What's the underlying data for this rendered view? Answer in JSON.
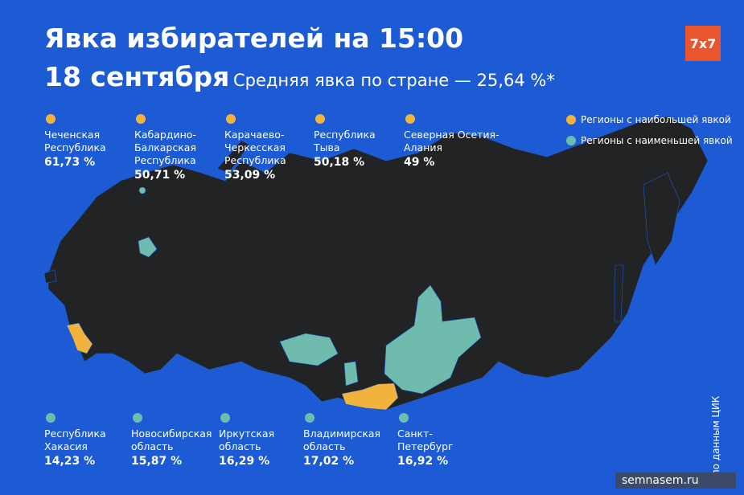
{
  "header": {
    "title": "Явка избирателей на 15:00",
    "date": "18 сентября",
    "subtitle": "Средняя явка по стране — 25,64 %*"
  },
  "logo": "7x7",
  "legend": [
    {
      "label": "Регионы с наибольшей явкой",
      "color": "#f2b33d"
    },
    {
      "label": "Регионы с наименьшей явкой",
      "color": "#6fbcaf"
    }
  ],
  "top_regions": [
    {
      "name": "Чеченская\nРеспублика",
      "turnout": "61,73 %"
    },
    {
      "name": "Кабардино-\nБалкарская\nРеспублика",
      "turnout": "50,71 %"
    },
    {
      "name": "Карачаево-\nЧеркесская\nРеспублика",
      "turnout": "53,09 %"
    },
    {
      "name": "Республика\nТыва",
      "turnout": "50,18 %"
    },
    {
      "name": "Северная Осетия-\nАлания",
      "turnout": "49 %"
    }
  ],
  "bottom_regions": [
    {
      "name": "Республика\nХакасия",
      "turnout": "14,23 %"
    },
    {
      "name": "Новосибирская\nобласть",
      "turnout": "15,87 %"
    },
    {
      "name": "Иркутская\nобласть",
      "turnout": "16,29 %"
    },
    {
      "name": "Владимирская\nобласть",
      "turnout": "17,02 %"
    },
    {
      "name": "Санкт-\nПетербург",
      "turnout": "16,92 %"
    }
  ],
  "footnote": "* по данным ЦИК",
  "source": "semnasem.ru"
}
